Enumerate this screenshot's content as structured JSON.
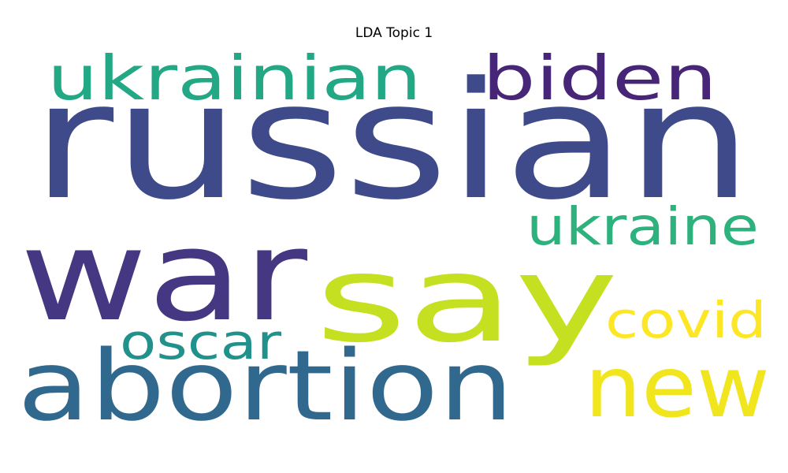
{
  "chart_data": {
    "type": "wordcloud",
    "title": "LDA Topic 1",
    "words": [
      {
        "text": "russian",
        "weight": 1.0,
        "color": "#3e4a89"
      },
      {
        "text": "war",
        "weight": 0.78,
        "color": "#453781"
      },
      {
        "text": "say",
        "weight": 0.74,
        "color": "#c5e021"
      },
      {
        "text": "abortion",
        "weight": 0.6,
        "color": "#31688e"
      },
      {
        "text": "new",
        "weight": 0.52,
        "color": "#f1e51d"
      },
      {
        "text": "ukrainian",
        "weight": 0.38,
        "color": "#22a884"
      },
      {
        "text": "biden",
        "weight": 0.38,
        "color": "#482677"
      },
      {
        "text": "ukraine",
        "weight": 0.32,
        "color": "#2db27d"
      },
      {
        "text": "covid",
        "weight": 0.31,
        "color": "#fde725"
      },
      {
        "text": "oscar",
        "weight": 0.3,
        "color": "#21918c"
      }
    ]
  }
}
